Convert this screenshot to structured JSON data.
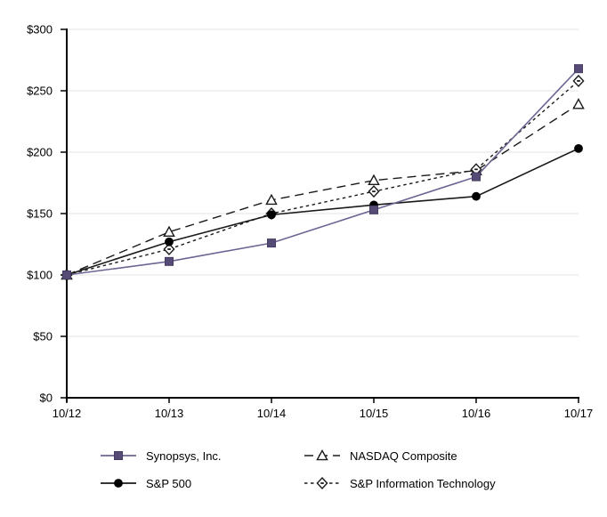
{
  "chart_data": {
    "type": "line",
    "title": "",
    "categories": [
      "10/12",
      "10/13",
      "10/14",
      "10/15",
      "10/16",
      "10/17"
    ],
    "series": [
      {
        "name": "Synopsys, Inc.",
        "values": [
          100,
          111,
          126,
          153,
          180,
          268
        ],
        "line_color": "#6f6494",
        "marker": "square",
        "marker_fill": "#564a76",
        "marker_stroke": "#463c62",
        "dash": "solid"
      },
      {
        "name": "NASDAQ Composite",
        "values": [
          100,
          135,
          161,
          177,
          185,
          239
        ],
        "line_color": "#1a1a1a",
        "marker": "triangle",
        "marker_fill": "#ffffff",
        "marker_stroke": "#1a1a1a",
        "dash": "long"
      },
      {
        "name": "S&P 500",
        "values": [
          100,
          127,
          149,
          157,
          164,
          203
        ],
        "line_color": "#1a1a1a",
        "marker": "circle",
        "marker_fill": "#000000",
        "marker_stroke": "#000000",
        "dash": "solid"
      },
      {
        "name": "S&P Information Technology",
        "values": [
          100,
          121,
          150,
          168,
          186,
          258
        ],
        "line_color": "#1a1a1a",
        "marker": "diamond-dot",
        "marker_fill": "#ffffff",
        "marker_stroke": "#1a1a1a",
        "dash": "short"
      }
    ],
    "y_ticks": [
      {
        "v": 0,
        "label": "$0"
      },
      {
        "v": 50,
        "label": "$50"
      },
      {
        "v": 100,
        "label": "$100"
      },
      {
        "v": 150,
        "label": "$150"
      },
      {
        "v": 200,
        "label": "$200"
      },
      {
        "v": 250,
        "label": "$250"
      },
      {
        "v": 300,
        "label": "$300"
      }
    ],
    "ylim": [
      0,
      300
    ],
    "xlabel": "",
    "ylabel": "",
    "grid": true,
    "legend_position": "bottom",
    "draw_order": [
      1,
      3,
      2,
      0
    ]
  },
  "colors": {
    "background": "#ffffff",
    "gridline": "#e3e3e3",
    "axis": "#000000",
    "text": "#000000",
    "accent_purple": "#564a76"
  }
}
